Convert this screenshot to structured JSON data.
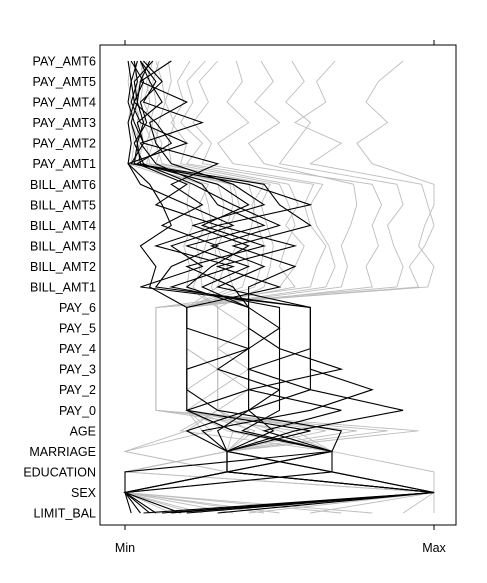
{
  "chart_data": {
    "type": "parallel_coordinates",
    "title": "",
    "variables": [
      "LIMIT_BAL",
      "SEX",
      "EDUCATION",
      "MARRIAGE",
      "AGE",
      "PAY_0",
      "PAY_2",
      "PAY_3",
      "PAY_4",
      "PAY_5",
      "PAY_6",
      "BILL_AMT1",
      "BILL_AMT2",
      "BILL_AMT3",
      "BILL_AMT4",
      "BILL_AMT5",
      "BILL_AMT6",
      "PAY_AMT1",
      "PAY_AMT2",
      "PAY_AMT3",
      "PAY_AMT4",
      "PAY_AMT5",
      "PAY_AMT6"
    ],
    "scale_labels": {
      "min": "Min",
      "max": "Max"
    },
    "x_range": [
      0,
      1
    ],
    "grid": false,
    "line_colors": {
      "group_a": "#000000",
      "group_b": "#bdbdbd"
    },
    "series": [
      {
        "group": "group_b",
        "values": [
          0.08,
          1.0,
          0.33,
          0.33,
          0.25,
          0.2,
          0.2,
          0.2,
          0.2,
          0.2,
          0.2,
          0.3,
          0.32,
          0.3,
          0.33,
          0.35,
          0.34,
          0.05,
          0.04,
          0.04,
          0.05,
          0.06,
          0.05
        ]
      },
      {
        "group": "group_b",
        "values": [
          0.25,
          0.0,
          0.67,
          0.33,
          0.4,
          0.3,
          0.3,
          0.3,
          0.3,
          0.3,
          0.3,
          0.45,
          0.47,
          0.48,
          0.46,
          0.44,
          0.47,
          0.1,
          0.12,
          0.08,
          0.1,
          0.09,
          0.11
        ]
      },
      {
        "group": "group_b",
        "values": [
          0.4,
          1.0,
          0.33,
          0.67,
          0.55,
          0.1,
          0.1,
          0.1,
          0.1,
          0.1,
          0.1,
          0.6,
          0.62,
          0.65,
          0.6,
          0.58,
          0.61,
          0.2,
          0.25,
          0.18,
          0.22,
          0.2,
          0.26
        ]
      },
      {
        "group": "group_b",
        "values": [
          0.15,
          0.0,
          0.0,
          0.33,
          0.3,
          0.4,
          0.4,
          0.4,
          0.4,
          0.4,
          0.4,
          0.25,
          0.24,
          0.26,
          0.28,
          0.27,
          0.25,
          0.03,
          0.05,
          0.02,
          0.04,
          0.03,
          0.04
        ]
      },
      {
        "group": "group_b",
        "values": [
          0.6,
          1.0,
          0.67,
          0.67,
          0.7,
          0.2,
          0.2,
          0.2,
          0.2,
          0.2,
          0.2,
          0.8,
          0.78,
          0.82,
          0.8,
          0.83,
          0.8,
          0.35,
          0.3,
          0.4,
          0.33,
          0.38,
          0.36
        ]
      },
      {
        "group": "group_b",
        "values": [
          0.05,
          0.0,
          0.33,
          0.0,
          0.2,
          0.3,
          0.3,
          0.3,
          0.3,
          0.3,
          0.3,
          0.2,
          0.21,
          0.19,
          0.22,
          0.2,
          0.21,
          0.01,
          0.02,
          0.01,
          0.02,
          0.01,
          0.02
        ]
      },
      {
        "group": "group_b",
        "values": [
          0.9,
          1.0,
          0.0,
          0.33,
          0.85,
          0.1,
          0.1,
          0.1,
          0.1,
          0.1,
          0.1,
          0.95,
          0.92,
          0.97,
          1.0,
          0.98,
          0.96,
          0.6,
          0.7,
          0.55,
          0.65,
          0.62,
          0.68
        ]
      },
      {
        "group": "group_b",
        "values": [
          0.35,
          0.0,
          0.33,
          0.67,
          0.5,
          0.2,
          0.2,
          0.2,
          0.2,
          0.2,
          0.2,
          0.55,
          0.5,
          0.52,
          0.55,
          0.53,
          0.5,
          0.15,
          0.14,
          0.16,
          0.13,
          0.15,
          0.14
        ]
      },
      {
        "group": "group_b",
        "values": [
          0.2,
          1.0,
          0.67,
          0.33,
          0.35,
          0.2,
          0.3,
          0.3,
          0.2,
          0.2,
          0.2,
          0.38,
          0.4,
          0.39,
          0.41,
          0.42,
          0.4,
          0.08,
          0.07,
          0.09,
          0.06,
          0.08,
          0.07
        ]
      },
      {
        "group": "group_b",
        "values": [
          0.7,
          0.0,
          0.33,
          0.33,
          0.6,
          0.2,
          0.2,
          0.2,
          0.2,
          0.2,
          0.2,
          0.7,
          0.72,
          0.7,
          0.73,
          0.75,
          0.74,
          0.45,
          0.4,
          0.5,
          0.42,
          0.48,
          0.44
        ]
      },
      {
        "group": "group_b",
        "values": [
          0.12,
          1.0,
          1.0,
          0.67,
          0.45,
          0.3,
          0.3,
          0.4,
          0.3,
          0.3,
          0.3,
          0.28,
          0.3,
          0.29,
          0.31,
          0.32,
          0.3,
          0.04,
          0.06,
          0.05,
          0.03,
          0.05,
          0.06
        ]
      },
      {
        "group": "group_b",
        "values": [
          0.5,
          0.0,
          0.0,
          0.33,
          0.65,
          0.2,
          0.2,
          0.2,
          0.2,
          0.2,
          0.2,
          0.65,
          0.68,
          0.66,
          0.62,
          0.6,
          0.64,
          0.25,
          0.28,
          0.22,
          0.27,
          0.24,
          0.3
        ]
      },
      {
        "group": "group_b",
        "values": [
          0.3,
          1.0,
          0.33,
          0.0,
          0.28,
          0.2,
          0.2,
          0.2,
          0.2,
          0.2,
          0.2,
          0.42,
          0.44,
          0.45,
          0.43,
          0.41,
          0.45,
          0.12,
          0.1,
          0.11,
          0.13,
          0.12,
          0.1
        ]
      },
      {
        "group": "group_b",
        "values": [
          0.8,
          0.0,
          0.67,
          0.33,
          0.75,
          0.1,
          0.1,
          0.1,
          0.1,
          0.1,
          0.1,
          0.88,
          0.9,
          0.87,
          0.85,
          0.9,
          0.88,
          0.5,
          0.55,
          0.6,
          0.52,
          0.58,
          0.54
        ]
      },
      {
        "group": "group_b",
        "values": [
          0.1,
          1.0,
          0.33,
          0.67,
          0.18,
          0.3,
          0.4,
          0.3,
          0.3,
          0.4,
          0.3,
          0.22,
          0.25,
          0.23,
          0.26,
          0.24,
          0.27,
          0.02,
          0.03,
          0.02,
          0.03,
          0.04,
          0.03
        ]
      },
      {
        "group": "group_b",
        "values": [
          0.45,
          0.0,
          0.33,
          0.33,
          0.42,
          0.2,
          0.2,
          0.2,
          0.2,
          0.2,
          0.2,
          0.5,
          0.55,
          0.58,
          0.52,
          0.56,
          0.53,
          0.18,
          0.2,
          0.15,
          0.19,
          0.17,
          0.21
        ]
      },
      {
        "group": "group_b",
        "values": [
          1.0,
          1.0,
          0.0,
          0.33,
          0.95,
          0.1,
          0.1,
          0.1,
          0.1,
          0.1,
          0.1,
          0.98,
          1.0,
          0.95,
          0.97,
          1.0,
          1.0,
          0.8,
          0.75,
          0.85,
          0.78,
          0.82,
          0.9
        ]
      },
      {
        "group": "group_b",
        "values": [
          0.22,
          0.0,
          0.67,
          0.67,
          0.33,
          0.2,
          0.2,
          0.3,
          0.2,
          0.2,
          0.2,
          0.35,
          0.33,
          0.36,
          0.34,
          0.37,
          0.35,
          0.07,
          0.09,
          0.06,
          0.08,
          0.07,
          0.09
        ]
      },
      {
        "group": "group_a",
        "values": [
          0.05,
          0.0,
          0.33,
          0.33,
          0.2,
          0.4,
          0.6,
          0.6,
          0.6,
          0.6,
          0.6,
          0.05,
          0.25,
          0.15,
          0.35,
          0.2,
          0.05,
          0.01,
          0.2,
          0.05,
          0.02,
          0.04,
          0.03
        ]
      },
      {
        "group": "group_a",
        "values": [
          0.15,
          1.0,
          0.67,
          0.67,
          0.45,
          0.7,
          0.4,
          0.7,
          0.5,
          0.4,
          0.4,
          0.25,
          0.4,
          0.2,
          0.45,
          0.3,
          0.25,
          0.1,
          0.05,
          0.25,
          0.06,
          0.1,
          0.05
        ]
      },
      {
        "group": "group_a",
        "values": [
          0.1,
          0.0,
          0.33,
          0.67,
          0.38,
          0.5,
          0.5,
          0.3,
          0.4,
          0.5,
          0.4,
          0.35,
          0.2,
          0.45,
          0.25,
          0.4,
          0.3,
          0.05,
          0.04,
          0.06,
          0.04,
          0.05,
          0.15
        ]
      },
      {
        "group": "group_a",
        "values": [
          0.2,
          1.0,
          0.33,
          0.33,
          0.55,
          0.9,
          0.6,
          0.4,
          0.6,
          0.6,
          0.6,
          0.1,
          0.15,
          0.3,
          0.12,
          0.25,
          0.15,
          0.3,
          0.06,
          0.04,
          0.12,
          0.08,
          0.05
        ]
      },
      {
        "group": "group_a",
        "values": [
          0.08,
          0.0,
          0.67,
          0.33,
          0.6,
          0.2,
          0.2,
          0.2,
          0.4,
          0.2,
          0.2,
          0.5,
          0.3,
          0.55,
          0.3,
          0.6,
          0.4,
          0.02,
          0.06,
          0.03,
          0.01,
          0.02,
          0.04
        ]
      },
      {
        "group": "group_a",
        "values": [
          0.3,
          1.0,
          0.33,
          0.33,
          0.3,
          0.4,
          0.5,
          0.5,
          0.5,
          0.5,
          0.5,
          0.15,
          0.35,
          0.1,
          0.3,
          0.1,
          0.2,
          0.04,
          0.15,
          0.1,
          0.03,
          0.06,
          0.02
        ]
      },
      {
        "group": "group_a",
        "values": [
          0.02,
          0.0,
          0.0,
          0.67,
          0.7,
          0.3,
          0.2,
          0.2,
          0.2,
          0.2,
          0.2,
          0.08,
          0.1,
          0.05,
          0.15,
          0.12,
          0.08,
          0.01,
          0.02,
          0.01,
          0.03,
          0.02,
          0.01
        ]
      },
      {
        "group": "group_a",
        "values": [
          0.12,
          1.0,
          0.67,
          0.33,
          0.25,
          0.6,
          0.8,
          0.6,
          0.6,
          0.6,
          0.6,
          0.3,
          0.45,
          0.28,
          0.5,
          0.35,
          0.22,
          0.06,
          0.03,
          0.07,
          0.05,
          0.12,
          0.06
        ]
      },
      {
        "group": "group_a",
        "values": [
          0.18,
          0.0,
          0.33,
          0.33,
          0.48,
          0.4,
          0.4,
          0.4,
          0.4,
          0.4,
          0.4,
          0.2,
          0.28,
          0.4,
          0.22,
          0.45,
          0.35,
          0.15,
          0.1,
          0.08,
          0.2,
          0.05,
          0.08
        ]
      },
      {
        "group": "group_a",
        "values": [
          0.06,
          1.0,
          0.33,
          0.67,
          0.35,
          0.2,
          0.4,
          0.4,
          0.4,
          0.4,
          0.4,
          0.4,
          0.55,
          0.35,
          0.6,
          0.5,
          0.45,
          0.03,
          0.04,
          0.02,
          0.04,
          0.03,
          0.09
        ]
      }
    ]
  }
}
